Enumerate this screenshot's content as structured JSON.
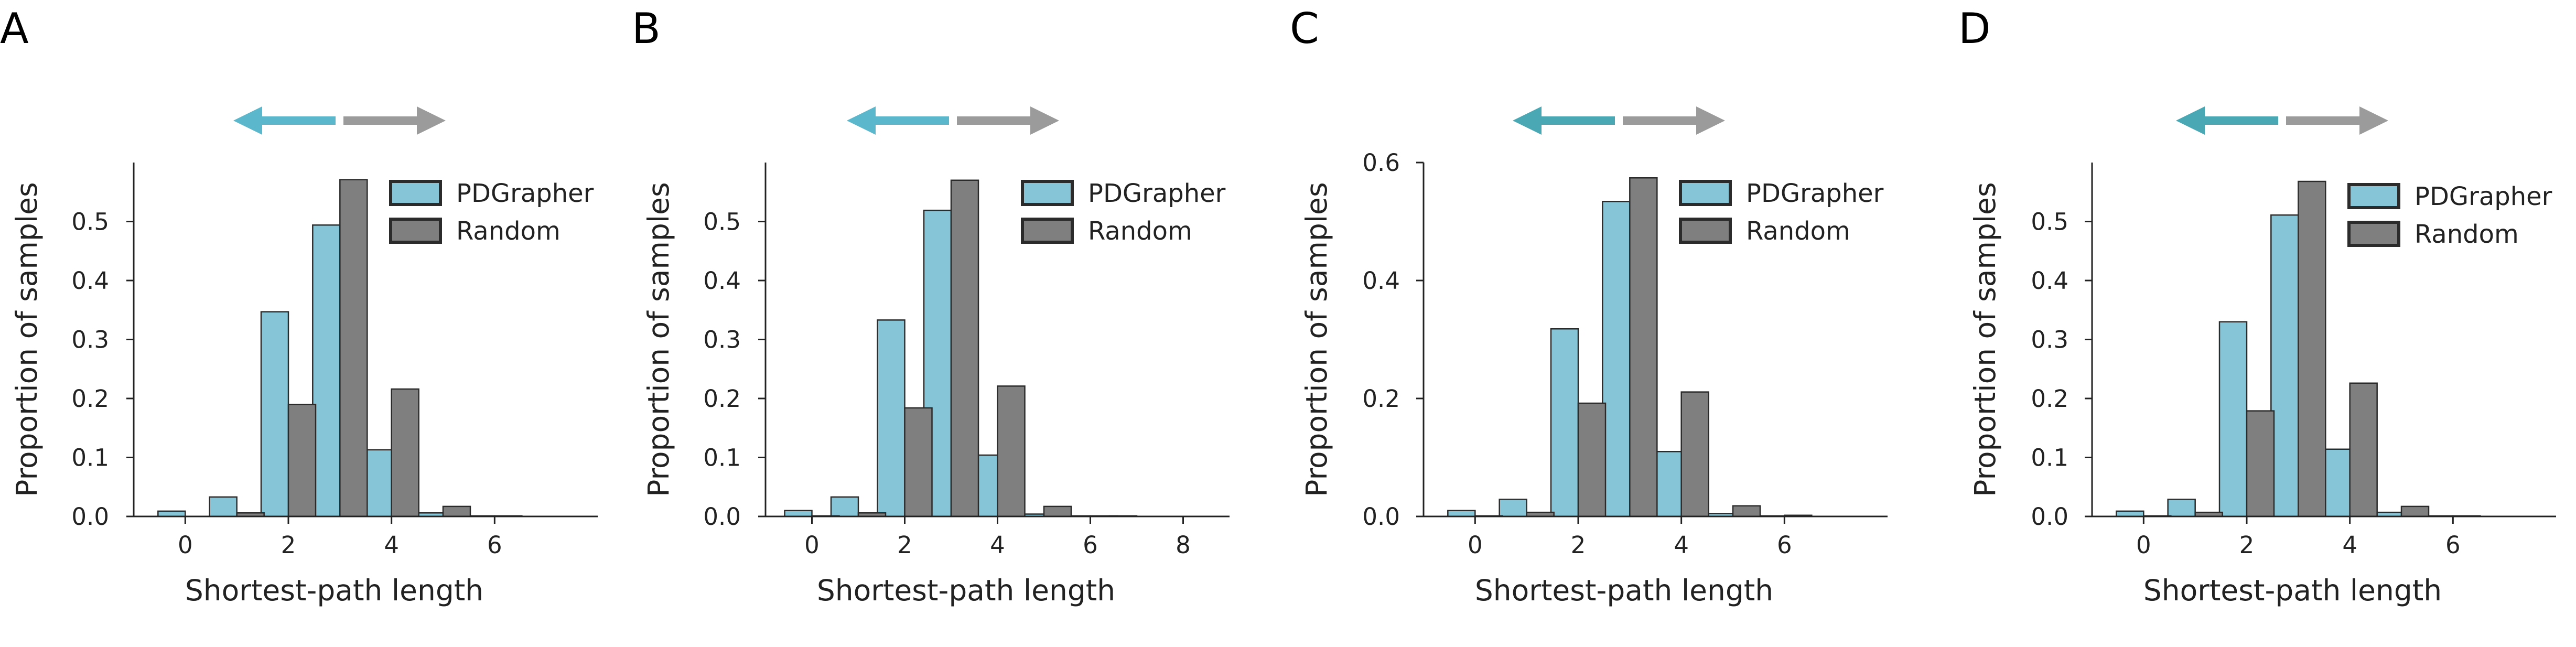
{
  "colors": {
    "pdgrapher": "#86c5d8",
    "random": "#7f7f7f",
    "bar_edge": "#2b2b2b",
    "arrow_left": "#5bb7cc",
    "arrow_left_dark": "#4aa8b5",
    "arrow_right": "#9b9b9b"
  },
  "chart_data": [
    {
      "letter": "A",
      "type": "bar",
      "xlabel": "Shortest-path length",
      "ylabel": "Proportion of samples",
      "ylim": [
        0,
        0.6
      ],
      "yticks": [
        0.0,
        0.1,
        0.2,
        0.3,
        0.4,
        0.5
      ],
      "ytick_labels": [
        "0.0",
        "0.1",
        "0.2",
        "0.3",
        "0.4",
        "0.5"
      ],
      "xlim": [
        -1,
        8
      ],
      "xticks": [
        0,
        2,
        4,
        6
      ],
      "ytick_label_right": 208,
      "arrow_style": "light",
      "legend": [
        "PDGrapher",
        "Random"
      ],
      "series": [
        {
          "name": "PDGrapher",
          "x": [
            0,
            1,
            2,
            3,
            4,
            5,
            6,
            7
          ],
          "values": [
            0.009,
            0.033,
            0.347,
            0.494,
            0.113,
            0.006,
            0.001,
            0.0
          ]
        },
        {
          "name": "Random",
          "x": [
            0,
            1,
            2,
            3,
            4,
            5,
            6,
            7
          ],
          "values": [
            0.0,
            0.006,
            0.19,
            0.571,
            0.216,
            0.017,
            0.001,
            0.0
          ]
        }
      ]
    },
    {
      "letter": "B",
      "type": "bar",
      "xlabel": "Shortest-path length",
      "ylabel": "Proportion of samples",
      "ylim": [
        0,
        0.6
      ],
      "yticks": [
        0.0,
        0.1,
        0.2,
        0.3,
        0.4,
        0.5
      ],
      "ytick_labels": [
        "0.0",
        "0.1",
        "0.2",
        "0.3",
        "0.4",
        "0.5"
      ],
      "xlim": [
        -1,
        9
      ],
      "xticks": [
        0,
        2,
        4,
        6,
        8
      ],
      "ytick_label_right": 1413,
      "arrow_style": "light",
      "legend": [
        "PDGrapher",
        "Random"
      ],
      "series": [
        {
          "name": "PDGrapher",
          "x": [
            0,
            1,
            2,
            3,
            4,
            5,
            6,
            7,
            8
          ],
          "values": [
            0.01,
            0.033,
            0.333,
            0.519,
            0.104,
            0.004,
            0.001,
            0.001,
            0.0
          ]
        },
        {
          "name": "Random",
          "x": [
            0,
            1,
            2,
            3,
            4,
            5,
            6,
            7,
            8
          ],
          "values": [
            0.001,
            0.006,
            0.184,
            0.57,
            0.221,
            0.017,
            0.001,
            0.0,
            0.0
          ]
        }
      ]
    },
    {
      "letter": "C",
      "type": "bar",
      "xlabel": "Shortest-path length",
      "ylabel": "Proportion of samples",
      "ylim": [
        0,
        0.6
      ],
      "yticks": [
        0.0,
        0.2,
        0.4,
        0.6
      ],
      "ytick_labels": [
        "0.0",
        "0.2",
        "0.4",
        "0.6"
      ],
      "xlim": [
        -1,
        8
      ],
      "xticks": [
        0,
        2,
        4,
        6
      ],
      "ytick_label_right": 2670,
      "arrow_style": "dark",
      "legend": [
        "PDGrapher",
        "Random"
      ],
      "series": [
        {
          "name": "PDGrapher",
          "x": [
            0,
            1,
            2,
            3,
            4,
            5,
            6,
            7
          ],
          "values": [
            0.01,
            0.029,
            0.318,
            0.534,
            0.11,
            0.005,
            0.001,
            0.0
          ]
        },
        {
          "name": "Random",
          "x": [
            0,
            1,
            2,
            3,
            4,
            5,
            6,
            7
          ],
          "values": [
            0.001,
            0.007,
            0.192,
            0.574,
            0.211,
            0.018,
            0.002,
            0.0
          ]
        }
      ]
    },
    {
      "letter": "D",
      "type": "bar",
      "xlabel": "Shortest-path length",
      "ylabel": "Proportion of samples",
      "ylim": [
        0,
        0.6
      ],
      "yticks": [
        0.0,
        0.1,
        0.2,
        0.3,
        0.4,
        0.5
      ],
      "ytick_labels": [
        "0.0",
        "0.1",
        "0.2",
        "0.3",
        "0.4",
        "0.5"
      ],
      "xlim": [
        -1,
        8
      ],
      "xticks": [
        0,
        2,
        4,
        6
      ],
      "ytick_label_right": 3945,
      "arrow_style": "dark",
      "legend": [
        "PDGrapher",
        "Random"
      ],
      "series": [
        {
          "name": "PDGrapher",
          "x": [
            0,
            1,
            2,
            3,
            4,
            5,
            6,
            7
          ],
          "values": [
            0.009,
            0.029,
            0.33,
            0.511,
            0.114,
            0.007,
            0.001,
            0.0
          ]
        },
        {
          "name": "Random",
          "x": [
            0,
            1,
            2,
            3,
            4,
            5,
            6,
            7
          ],
          "values": [
            0.001,
            0.007,
            0.179,
            0.568,
            0.226,
            0.017,
            0.001,
            0.0
          ]
        }
      ]
    }
  ]
}
